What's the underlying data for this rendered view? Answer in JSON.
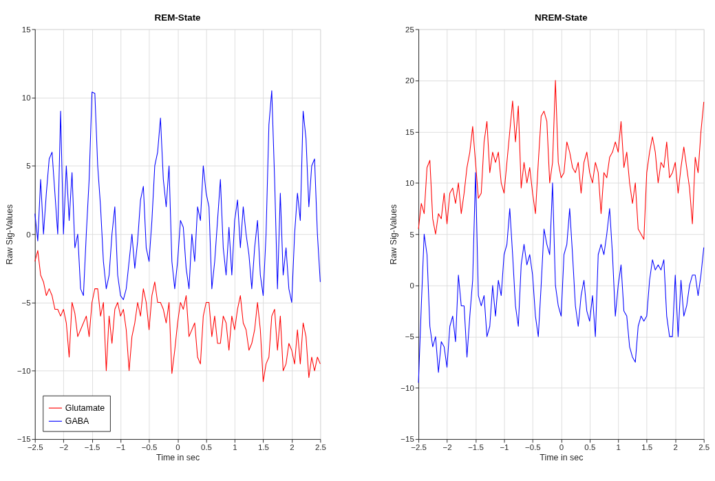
{
  "chart_data": [
    {
      "type": "line",
      "title": "REM-State",
      "xlabel": "Time in sec",
      "ylabel": "Raw Sig-Values",
      "x": [
        -2.5,
        -2.45,
        -2.4,
        -2.35,
        -2.3,
        -2.25,
        -2.2,
        -2.15,
        -2.1,
        -2.05,
        -2.0,
        -1.95,
        -1.9,
        -1.85,
        -1.8,
        -1.75,
        -1.7,
        -1.65,
        -1.6,
        -1.55,
        -1.5,
        -1.45,
        -1.4,
        -1.35,
        -1.3,
        -1.25,
        -1.2,
        -1.15,
        -1.1,
        -1.05,
        -1.0,
        -0.95,
        -0.9,
        -0.85,
        -0.8,
        -0.75,
        -0.7,
        -0.65,
        -0.6,
        -0.55,
        -0.5,
        -0.45,
        -0.4,
        -0.35,
        -0.3,
        -0.25,
        -0.2,
        -0.15,
        -0.1,
        -0.05,
        0,
        0.05,
        0.1,
        0.15,
        0.2,
        0.25,
        0.3,
        0.35,
        0.4,
        0.45,
        0.5,
        0.55,
        0.6,
        0.65,
        0.7,
        0.75,
        0.8,
        0.85,
        0.9,
        0.95,
        1.0,
        1.05,
        1.1,
        1.15,
        1.2,
        1.25,
        1.3,
        1.35,
        1.4,
        1.45,
        1.5,
        1.55,
        1.6,
        1.65,
        1.7,
        1.75,
        1.8,
        1.85,
        1.9,
        1.95,
        2.0,
        2.05,
        2.1,
        2.15,
        2.2,
        2.25,
        2.3,
        2.35,
        2.4,
        2.45,
        2.5
      ],
      "series": [
        {
          "name": "Glutamate",
          "color": "#ff0000",
          "values": [
            -2,
            -1.2,
            -3,
            -3.5,
            -4.5,
            -4,
            -4.5,
            -5.5,
            -5.5,
            -6,
            -5.5,
            -6.5,
            -9,
            -5,
            -5.8,
            -7.5,
            -7,
            -6.5,
            -6,
            -7.5,
            -5,
            -4,
            -4,
            -6,
            -5,
            -10,
            -6,
            -8,
            -5.5,
            -5,
            -6,
            -5.5,
            -7,
            -10,
            -7.5,
            -6.5,
            -5,
            -6,
            -4,
            -5,
            -7,
            -4.5,
            -3.5,
            -5,
            -5,
            -5.5,
            -6.5,
            -5,
            -10.2,
            -8.5,
            -6.5,
            -5,
            -5.5,
            -4.5,
            -7.5,
            -7,
            -6.5,
            -9,
            -9.5,
            -6,
            -5,
            -5,
            -7.5,
            -6,
            -8,
            -8,
            -6,
            -6.5,
            -8.5,
            -6,
            -7,
            -5.5,
            -4.5,
            -6.5,
            -7,
            -8.5,
            -8,
            -7,
            -5,
            -7,
            -10.8,
            -9.5,
            -9,
            -6,
            -5.5,
            -8.5,
            -6,
            -10,
            -9.5,
            -8,
            -8.5,
            -9.5,
            -7,
            -9.5,
            -6.5,
            -7.5,
            -10.5,
            -9,
            -10,
            -9,
            -9.5
          ]
        },
        {
          "name": "GABA",
          "color": "#0000ff",
          "values": [
            1.5,
            -0.5,
            4,
            0,
            3,
            5.5,
            6,
            3,
            0,
            9,
            0,
            5,
            1,
            4.5,
            -1,
            0,
            -4,
            -4.5,
            0,
            4,
            10.4,
            10.3,
            5,
            2,
            -2,
            -4,
            -3,
            0,
            2,
            -3,
            -4.5,
            -4.8,
            -4,
            -2,
            0,
            -2.5,
            -0.5,
            2.5,
            3.5,
            -1,
            -2,
            1,
            5,
            6,
            8.5,
            4,
            2,
            5,
            -2,
            -4,
            -2,
            1,
            0.5,
            -2.5,
            -4,
            0,
            -2,
            2,
            1,
            5,
            3,
            2,
            -4,
            -2,
            1,
            4,
            -1,
            -3,
            0.5,
            -3,
            1,
            2.5,
            -1,
            2,
            0,
            -1.5,
            -4,
            -1,
            1,
            -3,
            -4.5,
            0,
            8,
            10.5,
            4,
            -4,
            3,
            -3,
            -1,
            -4,
            -5,
            0,
            3,
            1,
            9,
            7,
            2,
            5,
            5.5,
            0,
            -3.5
          ]
        }
      ],
      "xlim": [
        -2.5,
        2.5
      ],
      "xticks": [
        -2.5,
        -2,
        -1.5,
        -1,
        -0.5,
        0,
        0.5,
        1,
        1.5,
        2,
        2.5
      ],
      "ylim": [
        -15,
        15
      ],
      "yticks": [
        -15,
        -10,
        -5,
        0,
        5,
        10,
        15
      ],
      "grid": true,
      "legend": "bottom left"
    },
    {
      "type": "line",
      "title": "NREM-State",
      "xlabel": "Time in sec",
      "ylabel": "Raw Sig-Values",
      "x": [
        -2.5,
        -2.45,
        -2.4,
        -2.35,
        -2.3,
        -2.25,
        -2.2,
        -2.15,
        -2.1,
        -2.05,
        -2.0,
        -1.95,
        -1.9,
        -1.85,
        -1.8,
        -1.75,
        -1.7,
        -1.65,
        -1.6,
        -1.55,
        -1.5,
        -1.45,
        -1.4,
        -1.35,
        -1.3,
        -1.25,
        -1.2,
        -1.15,
        -1.1,
        -1.05,
        -1.0,
        -0.95,
        -0.9,
        -0.85,
        -0.8,
        -0.75,
        -0.7,
        -0.65,
        -0.6,
        -0.55,
        -0.5,
        -0.45,
        -0.4,
        -0.35,
        -0.3,
        -0.25,
        -0.2,
        -0.15,
        -0.1,
        -0.05,
        0,
        0.05,
        0.1,
        0.15,
        0.2,
        0.25,
        0.3,
        0.35,
        0.4,
        0.45,
        0.5,
        0.55,
        0.6,
        0.65,
        0.7,
        0.75,
        0.8,
        0.85,
        0.9,
        0.95,
        1.0,
        1.05,
        1.1,
        1.15,
        1.2,
        1.25,
        1.3,
        1.35,
        1.4,
        1.45,
        1.5,
        1.55,
        1.6,
        1.65,
        1.7,
        1.75,
        1.8,
        1.85,
        1.9,
        1.95,
        2.0,
        2.05,
        2.1,
        2.15,
        2.2,
        2.25,
        2.3,
        2.35,
        2.4,
        2.45,
        2.5
      ],
      "series": [
        {
          "color": "#ff0000",
          "values": [
            5.5,
            8,
            7,
            11.5,
            12.2,
            6.5,
            5,
            7,
            6.5,
            9,
            6,
            9,
            9.5,
            8,
            10,
            7,
            9,
            11.5,
            13,
            15.5,
            12,
            8.5,
            9,
            14,
            16,
            11,
            13,
            12,
            13,
            10,
            9,
            12,
            15,
            18,
            14,
            17.5,
            9.5,
            12,
            10,
            11.5,
            9,
            7,
            12,
            16.5,
            17,
            16,
            10,
            12,
            20,
            12,
            10.5,
            11,
            14,
            13,
            11.5,
            11,
            12,
            9,
            12,
            13,
            11,
            10,
            12,
            11,
            7,
            11,
            10.5,
            12.5,
            13,
            14,
            13,
            16,
            11.5,
            13,
            10,
            8,
            10,
            5.5,
            5,
            4.5,
            11,
            13,
            14.5,
            13,
            10,
            12,
            11.5,
            14,
            10.5,
            11,
            12,
            9,
            11.5,
            13.5,
            11.5,
            9.5,
            6,
            12.5,
            11,
            15,
            17.9
          ]
        },
        {
          "color": "#0000ff",
          "values": [
            -9.5,
            -2,
            5,
            3,
            -4,
            -6,
            -5,
            -8.5,
            -5.5,
            -6,
            -8,
            -4,
            -3,
            -5.5,
            1,
            -2,
            -2,
            -7,
            -3,
            0.5,
            11,
            -1,
            -2,
            -1,
            -5,
            -4,
            0,
            -3,
            0.5,
            -1,
            3,
            4,
            7.5,
            3,
            -2,
            -4,
            2,
            4,
            2,
            3,
            1,
            -3,
            -5,
            0,
            5.5,
            4,
            3,
            10,
            0,
            -2,
            -3,
            3,
            4,
            7.5,
            3,
            -2,
            -4,
            -1,
            0.5,
            -2.5,
            -3.5,
            -1,
            -5,
            3,
            4,
            3,
            5,
            7.5,
            3,
            -3,
            0,
            2,
            -2.5,
            -3,
            -6,
            -7,
            -7.5,
            -4,
            -3,
            -3.5,
            -3,
            0.5,
            2.5,
            1.5,
            2,
            1.5,
            2.5,
            -3,
            -5,
            -5,
            1,
            -5,
            0.5,
            -3,
            -2,
            0,
            1,
            1,
            -1,
            1,
            3.7
          ]
        }
      ],
      "xlim": [
        -2.5,
        2.5
      ],
      "xticks": [
        -2.5,
        -2,
        -1.5,
        -1,
        -0.5,
        0,
        0.5,
        1,
        1.5,
        2,
        2.5
      ],
      "ylim": [
        -15,
        25
      ],
      "yticks": [
        -15,
        -10,
        -5,
        0,
        5,
        10,
        15,
        20,
        25
      ],
      "grid": true,
      "legend": false
    }
  ]
}
